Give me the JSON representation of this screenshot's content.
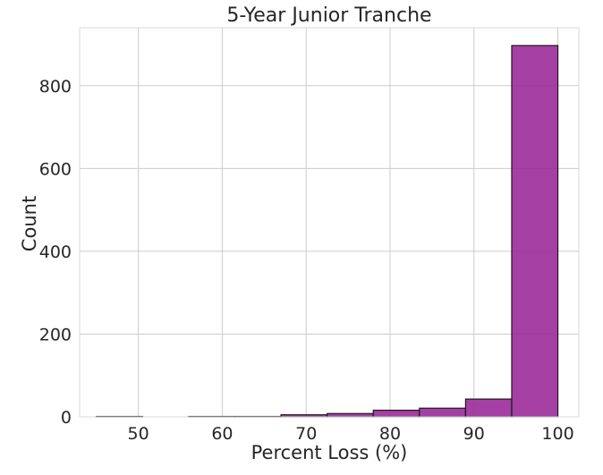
{
  "chart_data": {
    "type": "bar",
    "title": "5-Year Junior Tranche",
    "xlabel": "Percent Loss (%)",
    "ylabel": "Count",
    "xlim": [
      43.0,
      102.5
    ],
    "ylim": [
      0,
      940
    ],
    "x_ticks": [
      50,
      60,
      70,
      80,
      90,
      100
    ],
    "y_ticks": [
      0,
      200,
      400,
      600,
      800
    ],
    "grid": true,
    "bar_color": "#9b2a9a",
    "edge_color": "#1a1a1a",
    "bins": [
      {
        "x0": 45.0,
        "x1": 50.5,
        "value": 1
      },
      {
        "x0": 50.5,
        "x1": 56.0,
        "value": 0
      },
      {
        "x0": 56.0,
        "x1": 61.5,
        "value": 1
      },
      {
        "x0": 61.5,
        "x1": 67.0,
        "value": 1
      },
      {
        "x0": 67.0,
        "x1": 72.5,
        "value": 5
      },
      {
        "x0": 72.5,
        "x1": 78.0,
        "value": 8
      },
      {
        "x0": 78.0,
        "x1": 83.5,
        "value": 16
      },
      {
        "x0": 83.5,
        "x1": 89.0,
        "value": 21
      },
      {
        "x0": 89.0,
        "x1": 94.5,
        "value": 43
      },
      {
        "x0": 94.5,
        "x1": 100.0,
        "value": 897
      }
    ]
  }
}
